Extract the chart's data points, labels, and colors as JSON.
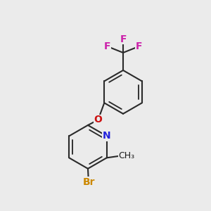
{
  "background_color": "#ebebeb",
  "bond_color": "#2a2a2a",
  "bond_width": 1.5,
  "atoms": {
    "N": {
      "color": "#2222dd",
      "fontsize": 10,
      "fontweight": "bold"
    },
    "O": {
      "color": "#cc1111",
      "fontsize": 10,
      "fontweight": "bold"
    },
    "Br": {
      "color": "#cc8800",
      "fontsize": 10,
      "fontweight": "bold"
    },
    "F": {
      "color": "#cc22aa",
      "fontsize": 10,
      "fontweight": "bold"
    },
    "CH3": {
      "color": "#1a1a1a",
      "fontsize": 9,
      "fontweight": "normal"
    }
  },
  "fig_width": 3.0,
  "fig_height": 3.0,
  "dpi": 100,
  "xlim": [
    0.0,
    1.0
  ],
  "ylim": [
    0.0,
    1.0
  ]
}
